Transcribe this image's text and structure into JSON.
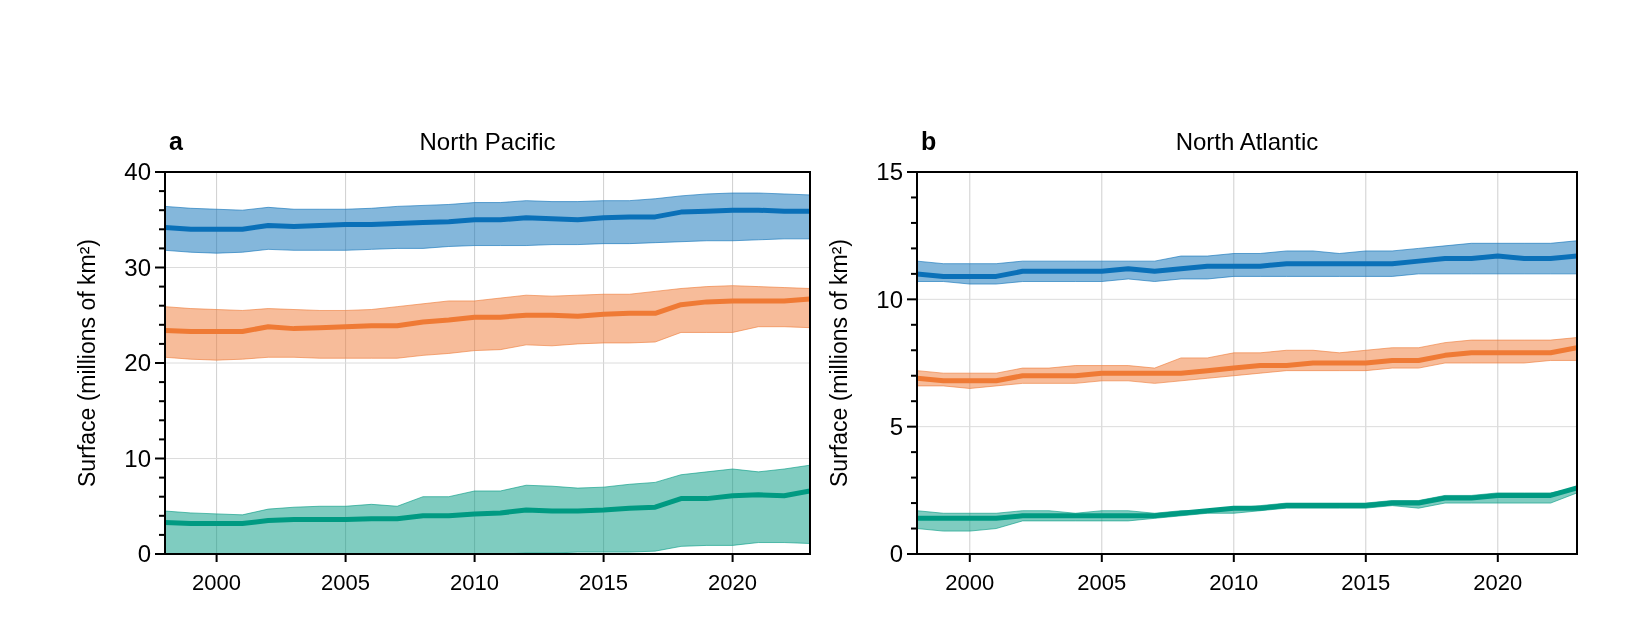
{
  "chart_data": [
    {
      "type": "line",
      "title": "North Pacific",
      "annotations": [
        "a"
      ],
      "ylabel": "Surface (millions of km²)",
      "x": [
        1998,
        1999,
        2000,
        2001,
        2002,
        2003,
        2004,
        2005,
        2006,
        2007,
        2008,
        2009,
        2010,
        2011,
        2012,
        2013,
        2014,
        2015,
        2016,
        2017,
        2018,
        2019,
        2020,
        2021,
        2022,
        2023
      ],
      "xlim": [
        1998,
        2023
      ],
      "xticks": [
        2000,
        2005,
        2010,
        2015,
        2020
      ],
      "ylim": [
        0,
        40
      ],
      "yticks": [
        0,
        {
          "value": 2,
          "label": null
        },
        {
          "value": 4,
          "label": null
        },
        {
          "value": 6,
          "label": null
        },
        {
          "value": 8,
          "label": null
        },
        10,
        {
          "value": 12,
          "label": null
        },
        {
          "value": 14,
          "label": null
        },
        {
          "value": 16,
          "label": null
        },
        {
          "value": 18,
          "label": null
        },
        20,
        {
          "value": 22,
          "label": null
        },
        {
          "value": 24,
          "label": null
        },
        {
          "value": 26,
          "label": null
        },
        {
          "value": 28,
          "label": null
        },
        30,
        {
          "value": 32,
          "label": null
        },
        {
          "value": 34,
          "label": null
        },
        {
          "value": 36,
          "label": null
        },
        {
          "value": 38,
          "label": null
        },
        40
      ],
      "grid": true,
      "series": [
        {
          "color": "#0a70b8",
          "values": [
            34.2,
            34,
            34,
            34,
            34.4,
            34.3,
            34.4,
            34.5,
            34.5,
            34.6,
            34.7,
            34.8,
            35,
            35,
            35.2,
            35.1,
            35,
            35.2,
            35.3,
            35.3,
            35.8,
            35.9,
            36,
            36,
            35.9,
            35.9
          ],
          "lower": [
            31.8,
            31.6,
            31.5,
            31.6,
            31.9,
            31.8,
            31.8,
            31.8,
            31.9,
            32,
            32,
            32.2,
            32.3,
            32.3,
            32.3,
            32.4,
            32.4,
            32.5,
            32.5,
            32.6,
            32.7,
            32.8,
            32.8,
            32.9,
            33,
            33
          ],
          "upper": [
            36.4,
            36.2,
            36.1,
            36,
            36.3,
            36.1,
            36.1,
            36.1,
            36.2,
            36.4,
            36.5,
            36.6,
            36.8,
            36.8,
            37,
            36.9,
            36.9,
            37,
            37,
            37.2,
            37.5,
            37.7,
            37.8,
            37.8,
            37.7,
            37.6
          ]
        },
        {
          "color": "#ef7a35",
          "values": [
            23.4,
            23.3,
            23.3,
            23.3,
            23.8,
            23.6,
            23.7,
            23.8,
            23.9,
            23.9,
            24.3,
            24.5,
            24.8,
            24.8,
            25,
            25,
            24.9,
            25.1,
            25.2,
            25.2,
            26.1,
            26.4,
            26.5,
            26.5,
            26.5,
            26.7
          ],
          "lower": [
            20.6,
            20.4,
            20.3,
            20.4,
            20.6,
            20.6,
            20.5,
            20.5,
            20.5,
            20.5,
            20.8,
            21,
            21.3,
            21.4,
            21.9,
            21.8,
            22,
            22.1,
            22.1,
            22.2,
            23.2,
            23.2,
            23.2,
            23.8,
            23.8,
            23.7
          ],
          "upper": [
            25.9,
            25.7,
            25.6,
            25.5,
            25.7,
            25.6,
            25.5,
            25.5,
            25.6,
            25.9,
            26.2,
            26.5,
            26.5,
            26.8,
            27.1,
            27,
            27.1,
            27.2,
            27.2,
            27.5,
            27.8,
            28,
            28.1,
            28,
            27.9,
            27.8
          ]
        },
        {
          "color": "#009a82",
          "values": [
            3.3,
            3.2,
            3.2,
            3.2,
            3.5,
            3.6,
            3.6,
            3.6,
            3.7,
            3.7,
            4,
            4,
            4.2,
            4.3,
            4.6,
            4.5,
            4.5,
            4.6,
            4.8,
            4.9,
            5.8,
            5.8,
            6.1,
            6.2,
            6.1,
            6.6
          ],
          "lower": [
            0,
            0,
            0,
            0,
            0,
            0,
            0,
            0,
            0,
            0,
            0,
            0,
            0,
            0,
            0.1,
            0.1,
            0.2,
            0.2,
            0.2,
            0.3,
            0.8,
            0.9,
            0.9,
            1.2,
            1.2,
            1.1
          ],
          "upper": [
            4.5,
            4.3,
            4.2,
            4.1,
            4.7,
            4.9,
            5,
            5,
            5.2,
            5,
            6,
            6,
            6.6,
            6.6,
            7.2,
            7.1,
            6.9,
            7,
            7.3,
            7.5,
            8.3,
            8.6,
            8.9,
            8.6,
            8.9,
            9.3
          ]
        }
      ]
    },
    {
      "type": "line",
      "title": "North Atlantic",
      "annotations": [
        "b"
      ],
      "ylabel": "Surface (millions of km²)",
      "x": [
        1998,
        1999,
        2000,
        2001,
        2002,
        2003,
        2004,
        2005,
        2006,
        2007,
        2008,
        2009,
        2010,
        2011,
        2012,
        2013,
        2014,
        2015,
        2016,
        2017,
        2018,
        2019,
        2020,
        2021,
        2022,
        2023
      ],
      "xlim": [
        1998,
        2023
      ],
      "xticks": [
        2000,
        2005,
        2010,
        2015,
        2020
      ],
      "ylim": [
        0,
        15
      ],
      "yticks": [
        0,
        {
          "value": 1,
          "label": null
        },
        {
          "value": 2,
          "label": null
        },
        {
          "value": 3,
          "label": null
        },
        {
          "value": 4,
          "label": null
        },
        5,
        {
          "value": 6,
          "label": null
        },
        {
          "value": 7,
          "label": null
        },
        {
          "value": 8,
          "label": null
        },
        {
          "value": 9,
          "label": null
        },
        10,
        {
          "value": 11,
          "label": null
        },
        {
          "value": 12,
          "label": null
        },
        {
          "value": 13,
          "label": null
        },
        {
          "value": 14,
          "label": null
        },
        15
      ],
      "grid": true,
      "series": [
        {
          "color": "#0a70b8",
          "values": [
            11.0,
            10.9,
            10.9,
            10.9,
            11.1,
            11.1,
            11.1,
            11.1,
            11.2,
            11.1,
            11.2,
            11.3,
            11.3,
            11.3,
            11.4,
            11.4,
            11.4,
            11.4,
            11.4,
            11.5,
            11.6,
            11.6,
            11.7,
            11.6,
            11.6,
            11.7
          ],
          "lower": [
            10.7,
            10.7,
            10.6,
            10.6,
            10.7,
            10.7,
            10.7,
            10.7,
            10.8,
            10.7,
            10.8,
            10.8,
            10.9,
            10.9,
            10.9,
            10.9,
            10.9,
            10.9,
            10.9,
            11.0,
            11.0,
            11.0,
            11.0,
            11.0,
            11.0,
            11.0
          ],
          "upper": [
            11.5,
            11.4,
            11.4,
            11.4,
            11.5,
            11.5,
            11.5,
            11.5,
            11.5,
            11.5,
            11.7,
            11.7,
            11.8,
            11.8,
            11.9,
            11.9,
            11.8,
            11.9,
            11.9,
            12.0,
            12.1,
            12.2,
            12.2,
            12.2,
            12.2,
            12.3
          ]
        },
        {
          "color": "#ef7a35",
          "values": [
            6.9,
            6.8,
            6.8,
            6.8,
            7.0,
            7.0,
            7.0,
            7.1,
            7.1,
            7.1,
            7.1,
            7.2,
            7.3,
            7.4,
            7.4,
            7.5,
            7.5,
            7.5,
            7.6,
            7.6,
            7.8,
            7.9,
            7.9,
            7.9,
            7.9,
            8.1
          ],
          "lower": [
            6.6,
            6.6,
            6.5,
            6.6,
            6.7,
            6.7,
            6.7,
            6.8,
            6.8,
            6.7,
            6.8,
            6.9,
            7.0,
            7.1,
            7.2,
            7.2,
            7.2,
            7.2,
            7.3,
            7.3,
            7.5,
            7.5,
            7.5,
            7.5,
            7.6,
            7.6
          ],
          "upper": [
            7.2,
            7.1,
            7.1,
            7.1,
            7.3,
            7.3,
            7.4,
            7.4,
            7.4,
            7.3,
            7.7,
            7.7,
            7.9,
            7.9,
            8.0,
            8.0,
            7.9,
            8.0,
            8.1,
            8.1,
            8.3,
            8.4,
            8.4,
            8.4,
            8.4,
            8.5
          ]
        },
        {
          "color": "#009a82",
          "values": [
            1.4,
            1.4,
            1.4,
            1.4,
            1.5,
            1.5,
            1.5,
            1.5,
            1.5,
            1.5,
            1.6,
            1.7,
            1.8,
            1.8,
            1.9,
            1.9,
            1.9,
            1.9,
            2.0,
            2.0,
            2.2,
            2.2,
            2.3,
            2.3,
            2.3,
            2.6
          ],
          "lower": [
            1.0,
            0.9,
            0.9,
            1.0,
            1.3,
            1.3,
            1.3,
            1.3,
            1.3,
            1.4,
            1.5,
            1.6,
            1.6,
            1.7,
            1.8,
            1.8,
            1.8,
            1.8,
            1.9,
            1.8,
            2.0,
            2.0,
            2.0,
            2.0,
            2.0,
            2.4
          ],
          "upper": [
            1.7,
            1.6,
            1.6,
            1.6,
            1.7,
            1.7,
            1.6,
            1.7,
            1.7,
            1.6,
            1.7,
            1.7,
            1.8,
            1.9,
            2.0,
            2.0,
            2.0,
            2.0,
            2.1,
            2.1,
            2.3,
            2.3,
            2.4,
            2.4,
            2.4,
            2.6
          ]
        }
      ]
    }
  ]
}
